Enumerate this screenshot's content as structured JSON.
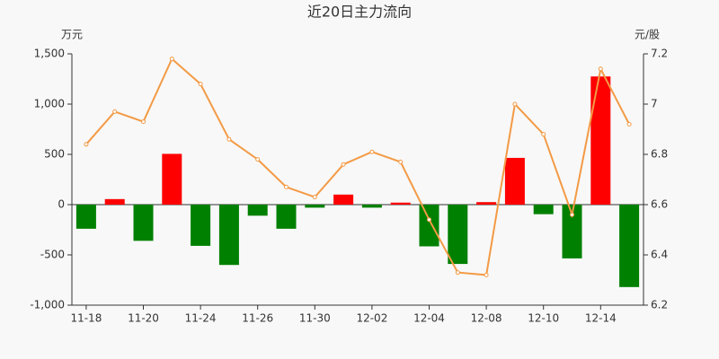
{
  "chart_data": {
    "type": "bar_line",
    "title": "近20日主力流向",
    "y_label": "万元",
    "y2_label": "元/股",
    "categories": [
      "11-18",
      null,
      "11-20",
      null,
      "11-24",
      null,
      "11-26",
      null,
      "11-30",
      null,
      "12-02",
      null,
      "12-04",
      null,
      "12-08",
      null,
      "12-10",
      null,
      "12-14",
      null
    ],
    "series": [
      {
        "type": "bar",
        "axis": "y",
        "positive_color": "#ff0000",
        "negative_color": "#008000",
        "values": [
          -240,
          55,
          -360,
          505,
          -410,
          -600,
          -110,
          -240,
          -30,
          100,
          -30,
          20,
          -415,
          -590,
          25,
          465,
          -95,
          -535,
          1275,
          -820
        ]
      },
      {
        "type": "line",
        "axis": "y2",
        "color": "#f39a45",
        "values": [
          6.84,
          6.97,
          6.93,
          7.18,
          7.08,
          6.86,
          6.78,
          6.67,
          6.63,
          6.76,
          6.81,
          6.77,
          6.54,
          6.33,
          6.32,
          7.0,
          6.88,
          6.56,
          7.14,
          6.92
        ]
      }
    ],
    "ylim": [
      -1000,
      1500
    ],
    "yticks": [
      {
        "value": -1000,
        "label": "-1,000"
      },
      -500,
      0,
      500,
      {
        "value": 1000,
        "label": "1,000"
      },
      {
        "value": 1500,
        "label": "1,500"
      }
    ],
    "y2lim": [
      6.2,
      7.2
    ],
    "y2ticks": [
      6.2,
      6.4,
      6.6,
      6.8,
      7,
      7.2
    ],
    "grid": false
  }
}
